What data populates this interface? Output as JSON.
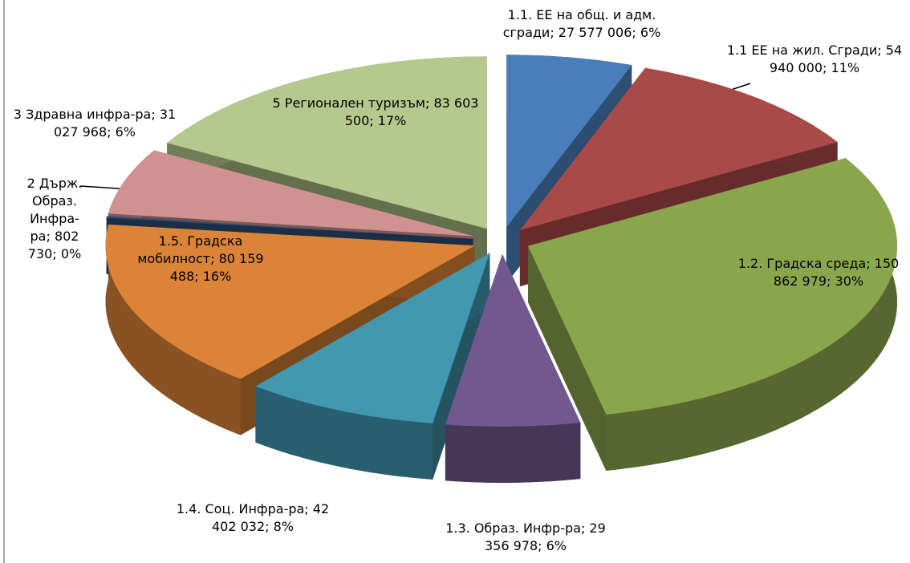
{
  "chart_data": {
    "type": "pie3d",
    "values": [
      27577006,
      54940000,
      150862979,
      29356978,
      42402032,
      80159488,
      802730,
      31027968,
      83603500
    ],
    "value_labels": [
      "1.1. ЕЕ на общ. и адм. сгради; 27 577 006; 6%",
      "1.1 ЕЕ на жил. Сгради; 54 940 000; 11%",
      "1.2. Градска среда; 150 862 979; 30%",
      "1.3. Образ. Инфр-ра; 29 356 978; 6%",
      "1.4. Соц. Инфра-ра; 42 402 032; 8%",
      "1.5. Градска мобилност; 80 159 488; 16%",
      "2 Държ. Образ. Инфра-ра; 802 730; 0%",
      "3 Здравна инфра-ра; 31 027 968; 6%",
      "5 Регионален туризъм; 83 603 500; 17%"
    ],
    "colors": [
      "#4a7ebb",
      "#a84a48",
      "#8aa64c",
      "#71588f",
      "#4198af",
      "#db8437",
      "#2c4d75",
      "#d09290",
      "#b5c98e"
    ]
  }
}
